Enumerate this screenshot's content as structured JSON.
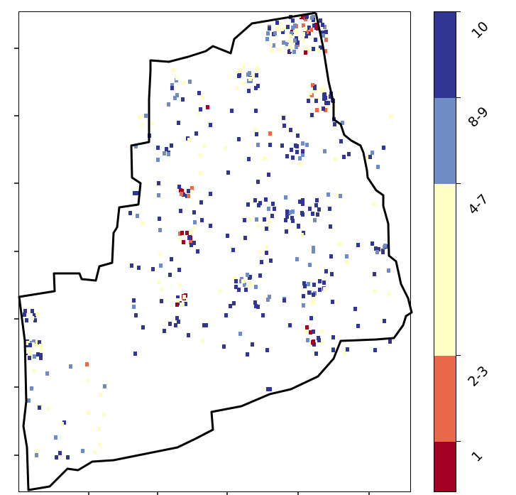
{
  "legend": {
    "classes": [
      {
        "label": "10",
        "color": "#313695"
      },
      {
        "label": "8-9",
        "color": "#6f8cc6"
      },
      {
        "label": "4-7",
        "color": "#ffffc5"
      },
      {
        "label": "2-3",
        "color": "#e9694a"
      },
      {
        "label": "1",
        "color": "#a40026"
      }
    ]
  },
  "colors": {
    "boundary": "#000000",
    "background": "#ffffff"
  }
}
